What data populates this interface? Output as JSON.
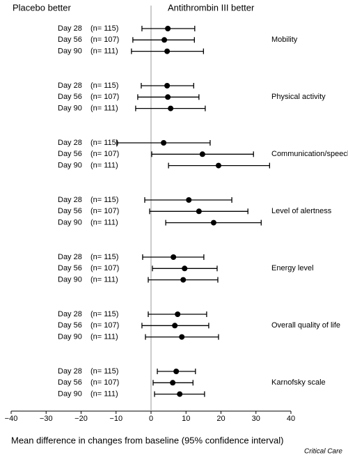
{
  "chart_data": {
    "type": "forest",
    "left_header": "Placebo better",
    "right_header": "Antithrombin III better",
    "xlabel": "Mean difference in changes from baseline (95% confidence interval)",
    "source": "Critical Care",
    "xlim": [
      -40,
      40
    ],
    "xticks": [
      {
        "value": -40,
        "label": "−40"
      },
      {
        "value": -30,
        "label": "−30"
      },
      {
        "value": -20,
        "label": "−20"
      },
      {
        "value": -10,
        "label": "−10"
      },
      0,
      10,
      20,
      30,
      40
    ],
    "groups": [
      {
        "name": "Mobility",
        "rows": [
          {
            "label": "Day 28",
            "n": "(n= 115)",
            "value": 4.8,
            "lower": -2.6,
            "upper": 12.5
          },
          {
            "label": "Day 56",
            "n": "(n= 107)",
            "value": 3.8,
            "lower": -5.2,
            "upper": 12.4
          },
          {
            "label": "Day 90",
            "n": "(n= 111)",
            "value": 4.6,
            "lower": -5.6,
            "upper": 15.0
          }
        ]
      },
      {
        "name": "Physical activity",
        "rows": [
          {
            "label": "Day 28",
            "n": "(n= 115)",
            "value": 4.6,
            "lower": -2.8,
            "upper": 12.2
          },
          {
            "label": "Day 56",
            "n": "(n= 107)",
            "value": 4.8,
            "lower": -3.8,
            "upper": 13.7
          },
          {
            "label": "Day 90",
            "n": "(n= 111)",
            "value": 5.6,
            "lower": -4.4,
            "upper": 15.5
          }
        ]
      },
      {
        "name": "Communication/speech",
        "rows": [
          {
            "label": "Day 28",
            "n": "(n= 115)",
            "value": 3.6,
            "lower": -9.8,
            "upper": 16.9
          },
          {
            "label": "Day 56",
            "n": "(n= 107)",
            "value": 14.7,
            "lower": 0.2,
            "upper": 29.3
          },
          {
            "label": "Day 90",
            "n": "(n= 111)",
            "value": 19.3,
            "lower": 5.0,
            "upper": 33.9
          }
        ]
      },
      {
        "name": "Level of alertness",
        "rows": [
          {
            "label": "Day 28",
            "n": "(n= 115)",
            "value": 10.8,
            "lower": -1.8,
            "upper": 23.1
          },
          {
            "label": "Day 56",
            "n": "(n= 107)",
            "value": 13.7,
            "lower": -0.4,
            "upper": 27.7
          },
          {
            "label": "Day 90",
            "n": "(n= 111)",
            "value": 17.9,
            "lower": 4.2,
            "upper": 31.5
          }
        ]
      },
      {
        "name": "Energy level",
        "rows": [
          {
            "label": "Day 28",
            "n": "(n= 115)",
            "value": 6.4,
            "lower": -2.4,
            "upper": 15.1
          },
          {
            "label": "Day 56",
            "n": "(n= 107)",
            "value": 9.6,
            "lower": 0.4,
            "upper": 18.9
          },
          {
            "label": "Day 90",
            "n": "(n= 111)",
            "value": 9.2,
            "lower": -0.8,
            "upper": 19.1
          }
        ]
      },
      {
        "name": "Overall quality of life",
        "rows": [
          {
            "label": "Day 28",
            "n": "(n= 115)",
            "value": 7.6,
            "lower": -0.8,
            "upper": 15.9
          },
          {
            "label": "Day 56",
            "n": "(n= 107)",
            "value": 6.8,
            "lower": -2.6,
            "upper": 16.5
          },
          {
            "label": "Day 90",
            "n": "(n= 111)",
            "value": 8.8,
            "lower": -1.6,
            "upper": 19.3
          }
        ]
      },
      {
        "name": "Karnofsky scale",
        "rows": [
          {
            "label": "Day 28",
            "n": "(n= 115)",
            "value": 7.2,
            "lower": 1.8,
            "upper": 12.7
          },
          {
            "label": "Day 56",
            "n": "(n= 107)",
            "value": 6.2,
            "lower": 0.6,
            "upper": 12.0
          },
          {
            "label": "Day 90",
            "n": "(n= 111)",
            "value": 8.2,
            "lower": 1.0,
            "upper": 15.3
          }
        ]
      }
    ]
  }
}
